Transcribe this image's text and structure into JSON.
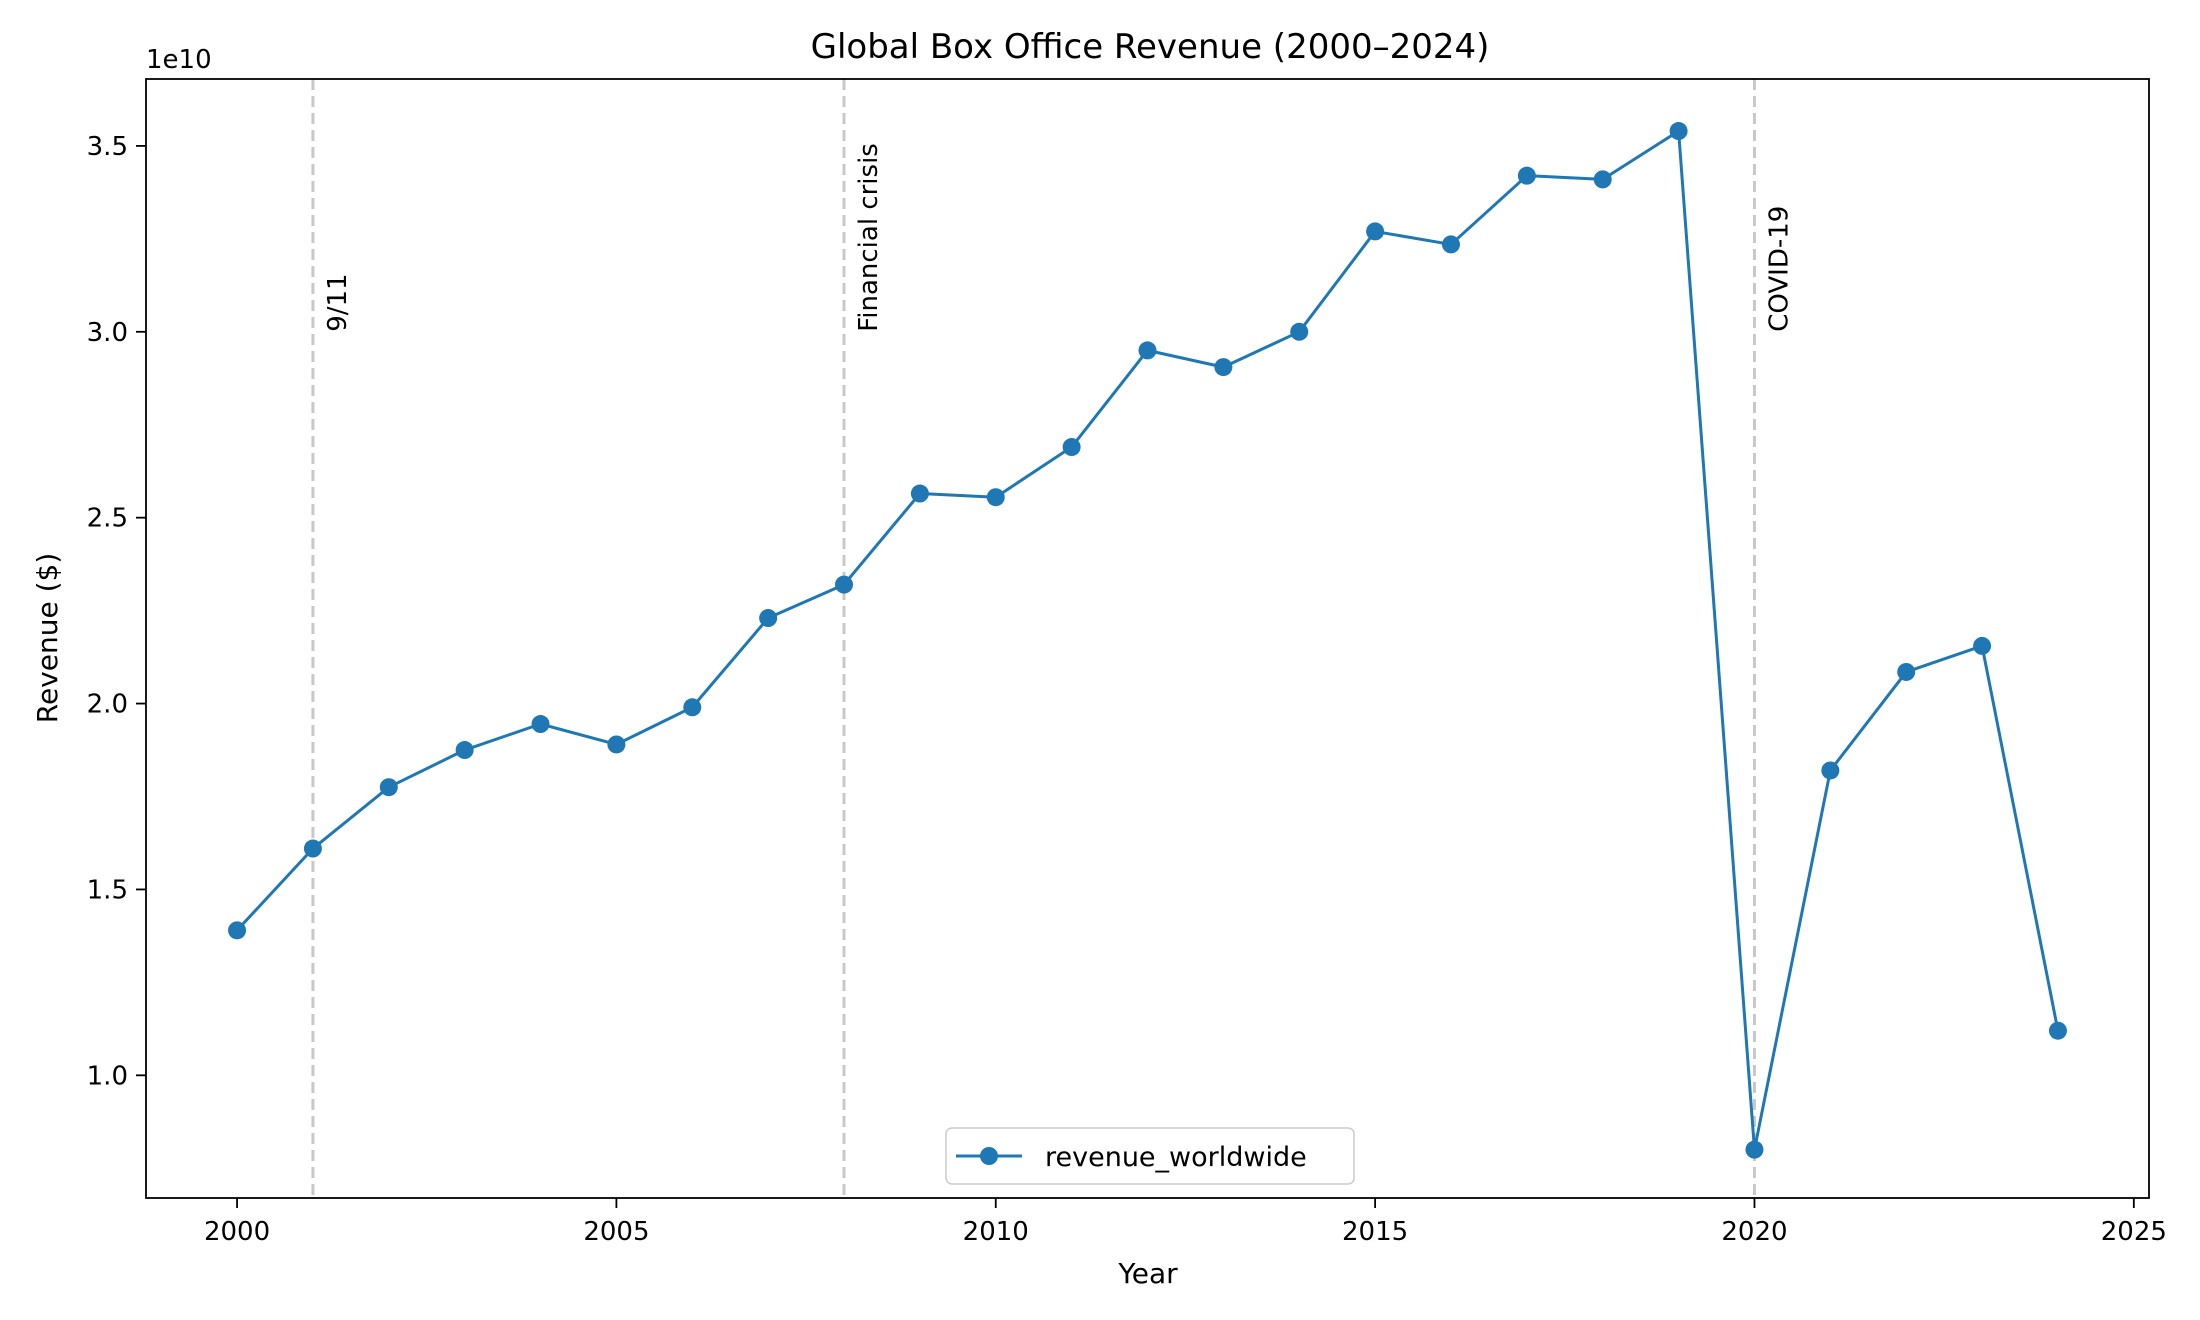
{
  "chart_data": {
    "type": "line",
    "title": "Global Box Office Revenue (2000–2024)",
    "xlabel": "Year",
    "ylabel": "Revenue ($)",
    "y_offset_label": "1e10",
    "xlim": [
      1998.8,
      2025.2
    ],
    "ylim": [
      6700000000.0,
      36800000000.0
    ],
    "x_ticks": [
      2000,
      2005,
      2010,
      2015,
      2020,
      2025
    ],
    "y_ticks": [
      1.0,
      1.5,
      2.0,
      2.5,
      3.0,
      3.5
    ],
    "y_tick_labels": [
      "1.0",
      "1.5",
      "2.0",
      "2.5",
      "3.0",
      "3.5"
    ],
    "grid": false,
    "legend_position": "lower center",
    "series": [
      {
        "name": "revenue_worldwide",
        "color": "#1f77b4",
        "marker": "circle",
        "x": [
          2000,
          2001,
          2002,
          2003,
          2004,
          2005,
          2006,
          2007,
          2008,
          2009,
          2010,
          2011,
          2012,
          2013,
          2014,
          2015,
          2016,
          2017,
          2018,
          2019,
          2020,
          2021,
          2022,
          2023,
          2024
        ],
        "y": [
          13900000000.0,
          16100000000.0,
          17750000000.0,
          18750000000.0,
          19450000000.0,
          18900000000.0,
          19900000000.0,
          22300000000.0,
          23200000000.0,
          25650000000.0,
          25550000000.0,
          26900000000.0,
          29500000000.0,
          29050000000.0,
          30000000000.0,
          32700000000.0,
          32350000000.0,
          34200000000.0,
          34100000000.0,
          35400000000.0,
          8000000000.0,
          18200000000.0,
          20850000000.0,
          21550000000.0,
          11200000000.0
        ]
      }
    ],
    "annotations": [
      {
        "x": 2001,
        "label": "9/11",
        "color": "#c8c8c8"
      },
      {
        "x": 2008,
        "label": "Financial crisis",
        "color": "#c8c8c8"
      },
      {
        "x": 2020,
        "label": "COVID-19",
        "color": "#c8c8c8"
      }
    ]
  }
}
